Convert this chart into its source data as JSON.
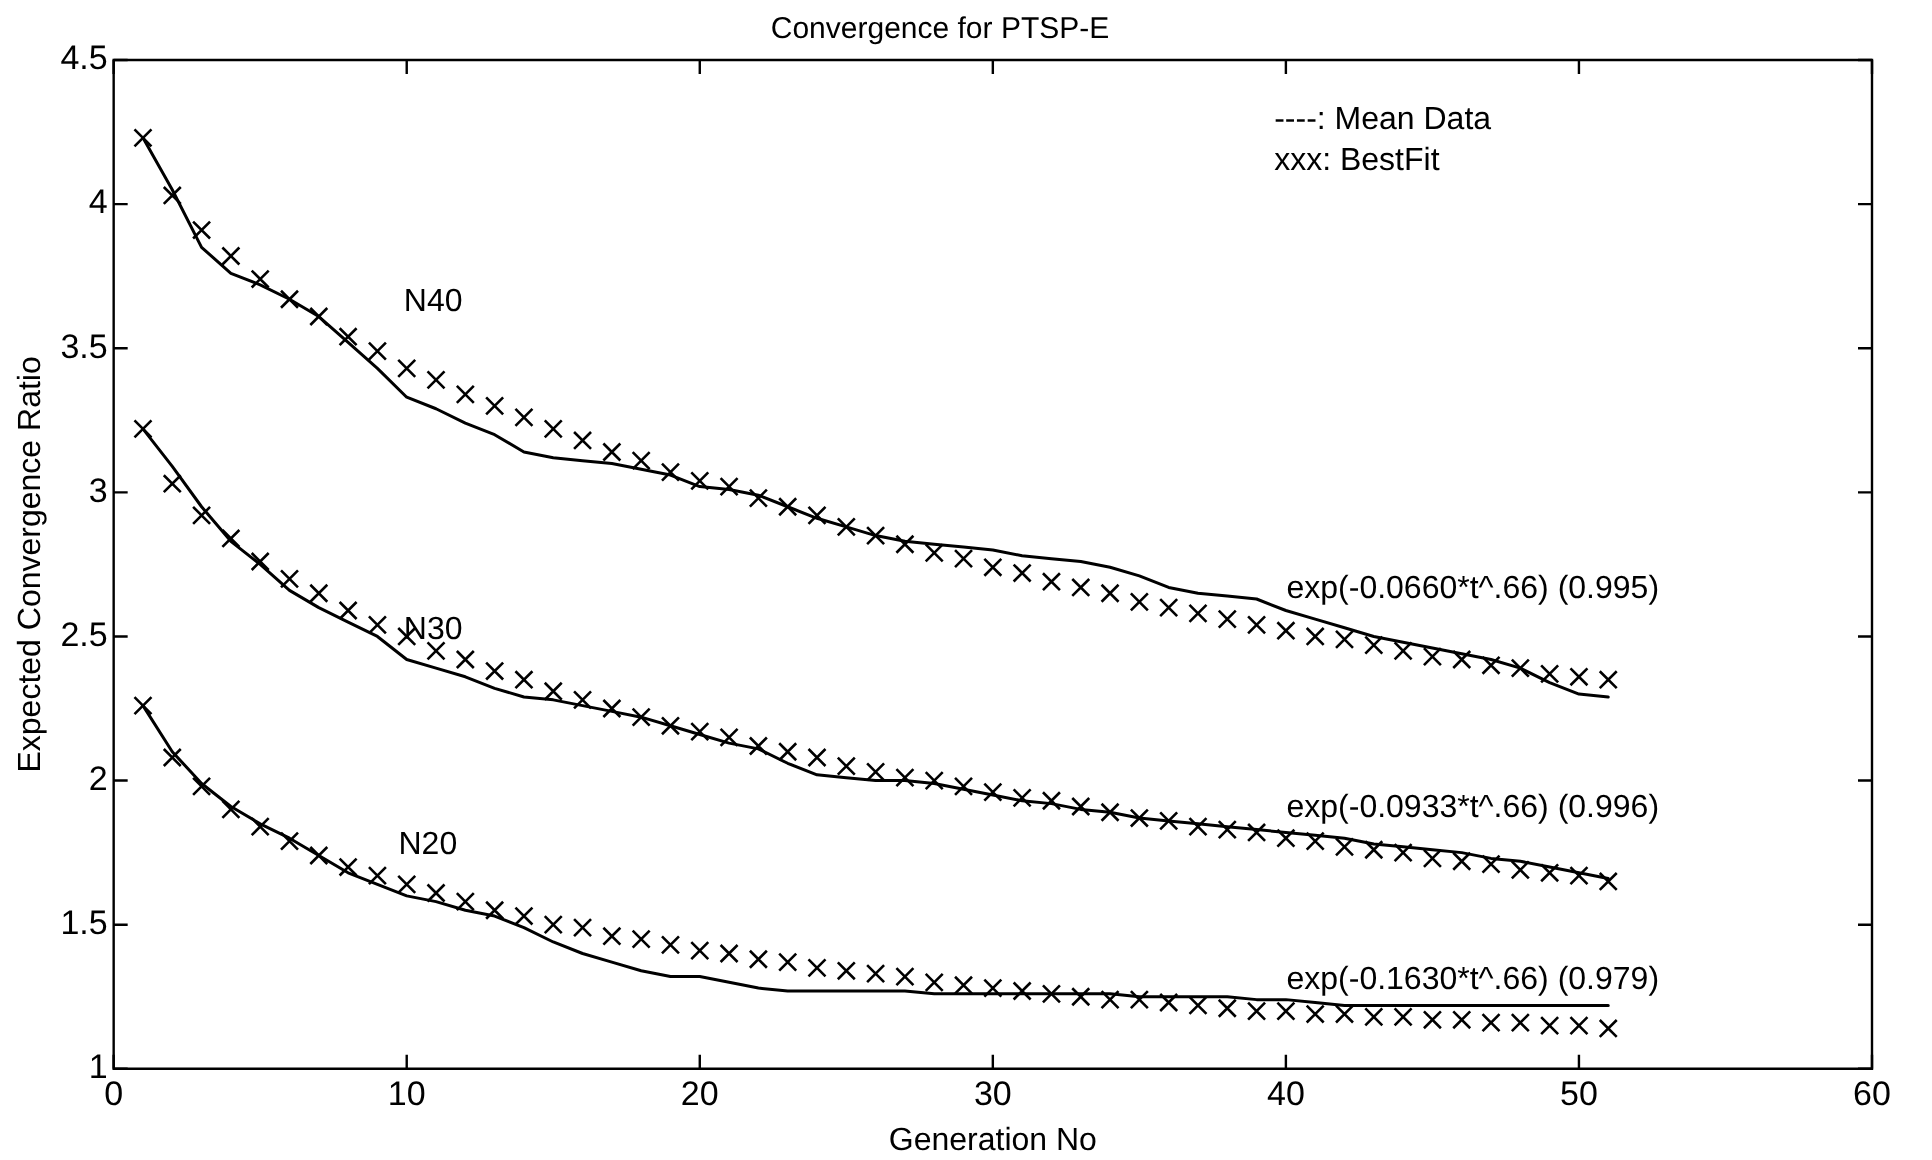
{
  "chart_data": {
    "type": "line",
    "title": "Convergence for PTSP-E",
    "xlabel": "Generation No",
    "ylabel": "Expected Convergence Ratio",
    "x": [
      1,
      2,
      3,
      4,
      5,
      6,
      7,
      8,
      9,
      10,
      11,
      12,
      13,
      14,
      15,
      16,
      17,
      18,
      19,
      20,
      21,
      22,
      23,
      24,
      25,
      26,
      27,
      28,
      29,
      30,
      31,
      32,
      33,
      34,
      35,
      36,
      37,
      38,
      39,
      40,
      41,
      42,
      43,
      44,
      45,
      46,
      47,
      48,
      49,
      50,
      51
    ],
    "xlim": [
      0,
      60
    ],
    "xticks": [
      0,
      10,
      20,
      30,
      40,
      50,
      60
    ],
    "ylim": [
      1,
      4.5
    ],
    "yticks": [
      1,
      1.5,
      2,
      2.5,
      3,
      3.5,
      4,
      4.5
    ],
    "grid": false,
    "legend": false,
    "line_style": "solid",
    "series": [
      {
        "color": "#000000",
        "marker": "none",
        "values": [
          4.23,
          4.05,
          3.85,
          3.76,
          3.72,
          3.67,
          3.61,
          3.52,
          3.43,
          3.33,
          3.29,
          3.24,
          3.2,
          3.14,
          3.12,
          3.11,
          3.1,
          3.08,
          3.06,
          3.02,
          3.01,
          2.99,
          2.95,
          2.91,
          2.88,
          2.85,
          2.83,
          2.82,
          2.81,
          2.8,
          2.78,
          2.77,
          2.76,
          2.74,
          2.71,
          2.67,
          2.65,
          2.64,
          2.63,
          2.59,
          2.56,
          2.53,
          2.5,
          2.48,
          2.46,
          2.44,
          2.42,
          2.39,
          2.34,
          2.3,
          2.29
        ]
      },
      {
        "type": "scatter",
        "color": "#000000",
        "marker": "cross",
        "values": [
          4.23,
          4.03,
          3.91,
          3.82,
          3.74,
          3.67,
          3.61,
          3.54,
          3.49,
          3.43,
          3.39,
          3.34,
          3.3,
          3.26,
          3.22,
          3.18,
          3.14,
          3.11,
          3.07,
          3.04,
          3.02,
          2.98,
          2.95,
          2.92,
          2.88,
          2.85,
          2.82,
          2.79,
          2.77,
          2.74,
          2.72,
          2.69,
          2.67,
          2.65,
          2.62,
          2.6,
          2.58,
          2.56,
          2.54,
          2.52,
          2.5,
          2.49,
          2.47,
          2.45,
          2.43,
          2.42,
          2.4,
          2.39,
          2.37,
          2.36,
          2.35
        ]
      },
      {
        "color": "#000000",
        "marker": "none",
        "values": [
          3.22,
          3.09,
          2.95,
          2.83,
          2.75,
          2.66,
          2.6,
          2.55,
          2.5,
          2.42,
          2.39,
          2.36,
          2.32,
          2.29,
          2.28,
          2.26,
          2.24,
          2.22,
          2.19,
          2.16,
          2.13,
          2.11,
          2.06,
          2.02,
          2.01,
          2.0,
          2.0,
          1.99,
          1.97,
          1.95,
          1.93,
          1.92,
          1.9,
          1.89,
          1.87,
          1.86,
          1.85,
          1.84,
          1.83,
          1.82,
          1.81,
          1.8,
          1.78,
          1.77,
          1.76,
          1.75,
          1.73,
          1.72,
          1.7,
          1.68,
          1.66
        ]
      },
      {
        "type": "scatter",
        "color": "#000000",
        "marker": "cross",
        "values": [
          3.22,
          3.03,
          2.92,
          2.84,
          2.76,
          2.7,
          2.65,
          2.59,
          2.54,
          2.5,
          2.45,
          2.42,
          2.38,
          2.35,
          2.31,
          2.28,
          2.25,
          2.22,
          2.19,
          2.17,
          2.15,
          2.12,
          2.1,
          2.08,
          2.05,
          2.03,
          2.01,
          2.0,
          1.98,
          1.96,
          1.94,
          1.93,
          1.91,
          1.89,
          1.87,
          1.86,
          1.84,
          1.83,
          1.82,
          1.8,
          1.79,
          1.77,
          1.76,
          1.75,
          1.73,
          1.72,
          1.71,
          1.69,
          1.68,
          1.67,
          1.65
        ]
      },
      {
        "color": "#000000",
        "marker": "none",
        "values": [
          2.26,
          2.1,
          1.99,
          1.91,
          1.85,
          1.8,
          1.74,
          1.68,
          1.64,
          1.6,
          1.58,
          1.55,
          1.53,
          1.49,
          1.44,
          1.4,
          1.37,
          1.34,
          1.32,
          1.32,
          1.3,
          1.28,
          1.27,
          1.27,
          1.27,
          1.27,
          1.27,
          1.26,
          1.26,
          1.26,
          1.26,
          1.26,
          1.26,
          1.26,
          1.25,
          1.25,
          1.25,
          1.25,
          1.24,
          1.24,
          1.23,
          1.22,
          1.22,
          1.22,
          1.22,
          1.22,
          1.22,
          1.22,
          1.22,
          1.22,
          1.22
        ]
      },
      {
        "type": "scatter",
        "color": "#000000",
        "marker": "cross",
        "values": [
          2.26,
          2.08,
          1.98,
          1.9,
          1.84,
          1.79,
          1.74,
          1.7,
          1.67,
          1.64,
          1.61,
          1.58,
          1.55,
          1.53,
          1.5,
          1.49,
          1.46,
          1.45,
          1.43,
          1.41,
          1.4,
          1.38,
          1.37,
          1.35,
          1.34,
          1.33,
          1.32,
          1.3,
          1.29,
          1.28,
          1.27,
          1.26,
          1.25,
          1.24,
          1.24,
          1.23,
          1.22,
          1.21,
          1.2,
          1.2,
          1.19,
          1.19,
          1.18,
          1.18,
          1.17,
          1.17,
          1.16,
          1.16,
          1.15,
          1.15,
          1.14
        ]
      }
    ],
    "annotations": [
      "----: Mean Data",
      "xxx: BestFit",
      "N40",
      "N30",
      "N20",
      "exp(-0.0660*t^.66) (0.995)",
      "exp(-0.0933*t^.66) (0.996)",
      "exp(-0.1630*t^.66) (0.979)"
    ]
  }
}
